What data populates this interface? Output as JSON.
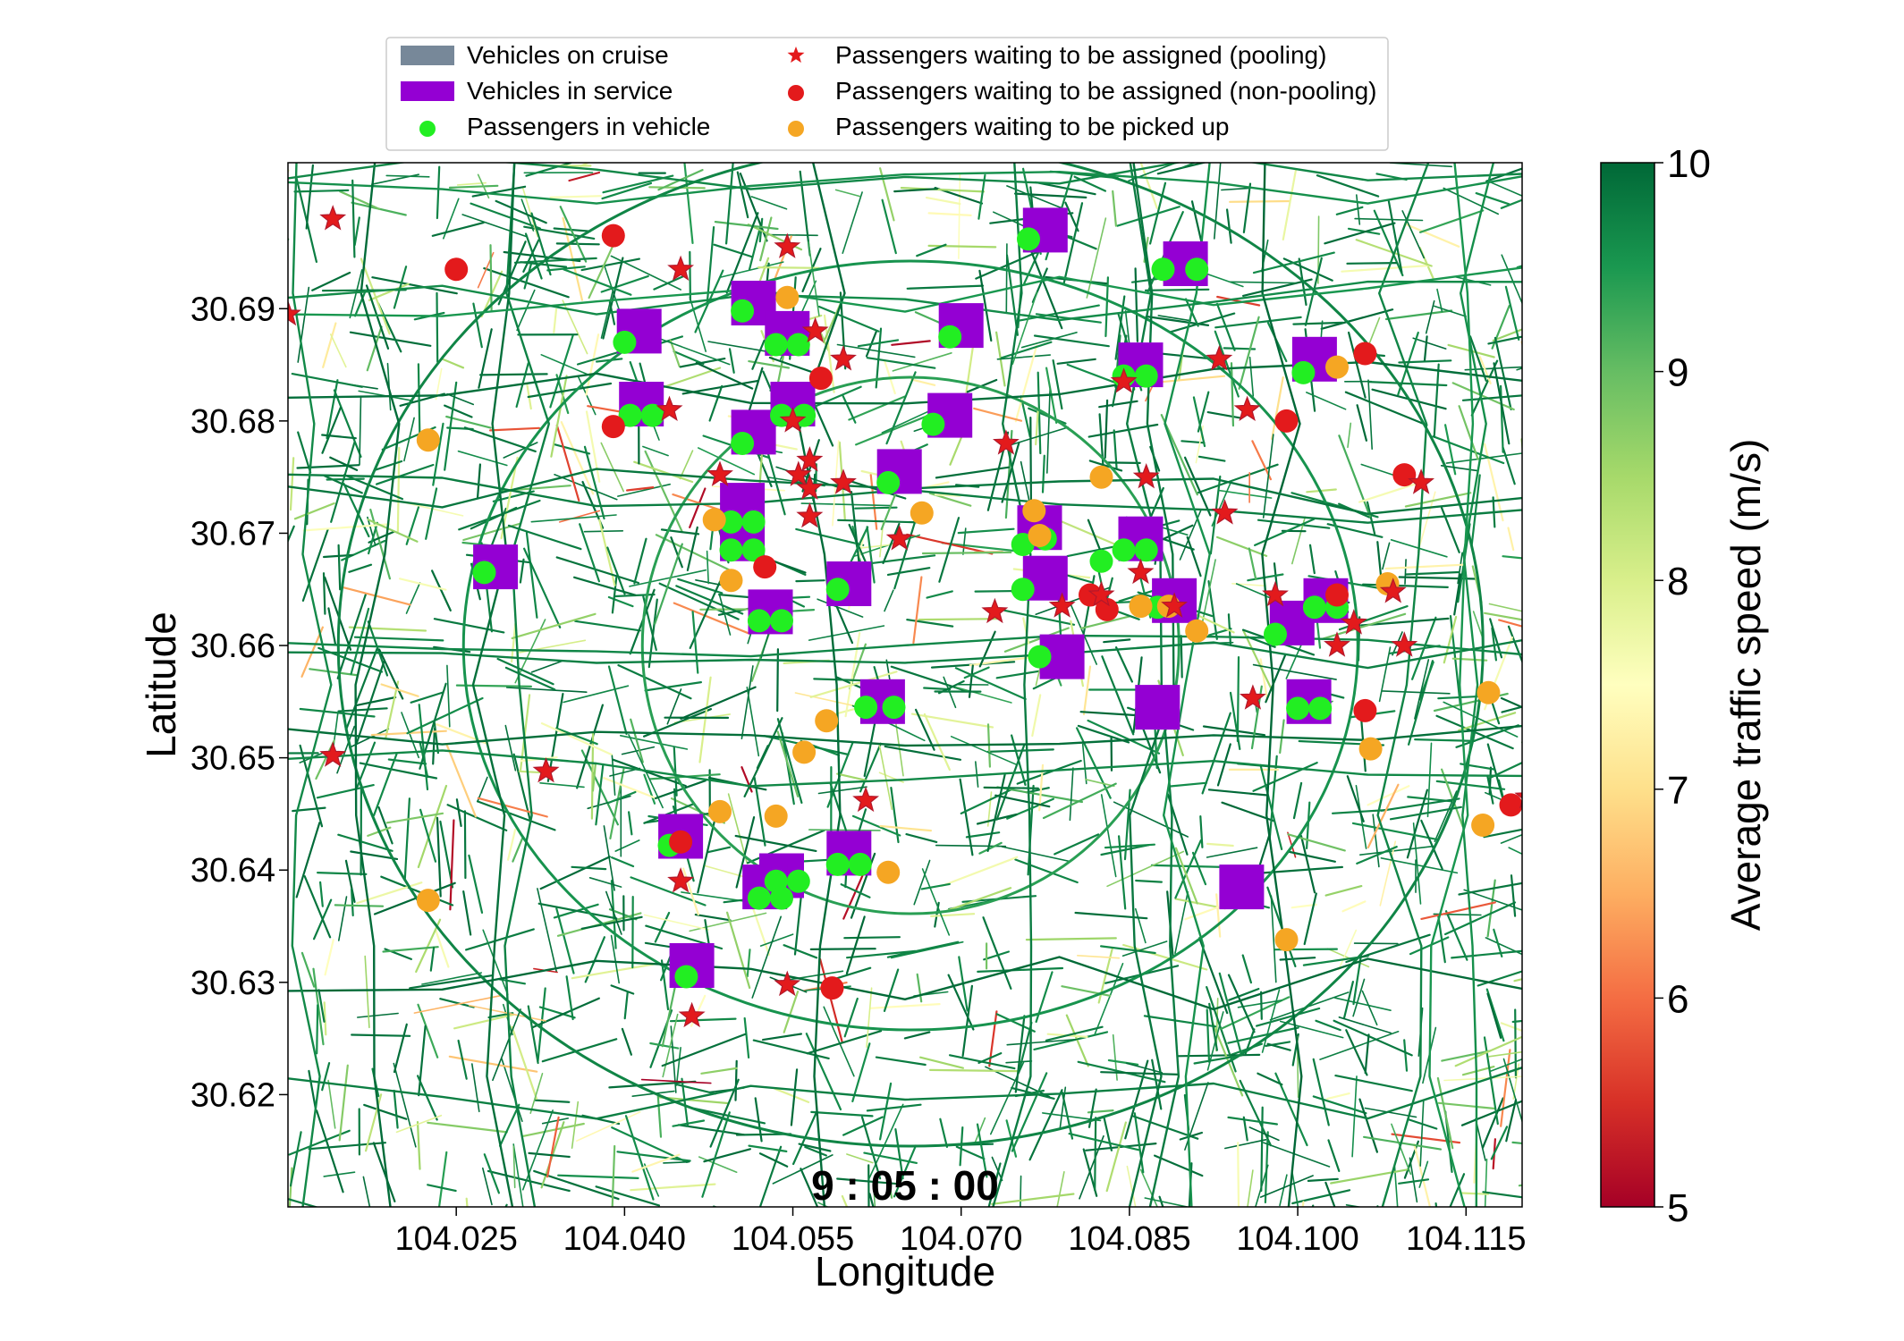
{
  "chart_data": {
    "type": "scatter",
    "xlabel": "Longitude",
    "ylabel": "Latitude",
    "xlim": [
      104.01,
      104.12
    ],
    "ylim": [
      30.61,
      30.703
    ],
    "x_ticks": [
      "104.025",
      "104.040",
      "104.055",
      "104.070",
      "104.085",
      "104.100",
      "104.115"
    ],
    "x_tick_values": [
      104.025,
      104.04,
      104.055,
      104.07,
      104.085,
      104.1,
      104.115
    ],
    "y_ticks": [
      "30.62",
      "30.63",
      "30.64",
      "30.65",
      "30.66",
      "30.67",
      "30.68",
      "30.69"
    ],
    "y_tick_values": [
      30.62,
      30.63,
      30.64,
      30.65,
      30.66,
      30.67,
      30.68,
      30.69
    ],
    "timestamp": "9 : 05 : 00",
    "grid": false,
    "legend_position": "top",
    "legend": [
      {
        "label": "Vehicles on cruise",
        "marker": "rect",
        "color": "#778899"
      },
      {
        "label": "Passengers waiting to be assigned (pooling)",
        "marker": "star",
        "color": "#e31a1c"
      },
      {
        "label": "Vehicles in service",
        "marker": "rect",
        "color": "#9400d3"
      },
      {
        "label": "Passengers waiting to be assigned (non-pooling)",
        "marker": "circle",
        "color": "#e31a1c"
      },
      {
        "label": "Passengers in vehicle",
        "marker": "circle",
        "color": "#22ee22"
      },
      {
        "label": "Passengers waiting to be picked up",
        "marker": "circle",
        "color": "#f5a623"
      }
    ],
    "colorbar": {
      "label": "Average traffic speed (m/s)",
      "min": 5,
      "max": 10,
      "ticks": [
        "5",
        "6",
        "7",
        "8",
        "9",
        "10"
      ],
      "tick_values": [
        5,
        6,
        7,
        8,
        9,
        10
      ],
      "colormap": "RdYlGn",
      "stops": [
        "#a50026",
        "#d73027",
        "#f46d43",
        "#fdae61",
        "#fee08b",
        "#ffffbf",
        "#d9ef8b",
        "#a6d96a",
        "#66bd63",
        "#1a9850",
        "#006837"
      ]
    },
    "vehicles_in_service": [
      [
        104.0775,
        30.697
      ],
      [
        104.09,
        30.694
      ],
      [
        104.0515,
        30.6905
      ],
      [
        104.0413,
        30.688
      ],
      [
        104.0545,
        30.6878
      ],
      [
        104.07,
        30.6885
      ],
      [
        104.086,
        30.685
      ],
      [
        104.1015,
        30.6855
      ],
      [
        104.0415,
        30.6815
      ],
      [
        104.055,
        30.6815
      ],
      [
        104.0515,
        30.679
      ],
      [
        104.069,
        30.6805
      ],
      [
        104.0645,
        30.6755
      ],
      [
        104.0505,
        30.6725
      ],
      [
        104.0505,
        30.6695
      ],
      [
        104.077,
        30.6705
      ],
      [
        104.086,
        30.6695
      ],
      [
        104.0285,
        30.667
      ],
      [
        104.06,
        30.6655
      ],
      [
        104.0775,
        30.666
      ],
      [
        104.053,
        30.663
      ],
      [
        104.089,
        30.664
      ],
      [
        104.1025,
        30.664
      ],
      [
        104.0995,
        30.662
      ],
      [
        104.079,
        30.659
      ],
      [
        104.063,
        30.655
      ],
      [
        104.0875,
        30.6545
      ],
      [
        104.101,
        30.655
      ],
      [
        104.045,
        30.643
      ],
      [
        104.06,
        30.6415
      ],
      [
        104.054,
        30.6395
      ],
      [
        104.0525,
        30.6385
      ],
      [
        104.095,
        30.6385
      ],
      [
        104.046,
        30.6315
      ]
    ],
    "vehicles_on_cruise": [],
    "passengers_in_vehicle": [
      [
        104.076,
        30.6962
      ],
      [
        104.088,
        30.6935
      ],
      [
        104.091,
        30.6935
      ],
      [
        104.0505,
        30.6898
      ],
      [
        104.0535,
        30.6868
      ],
      [
        104.0555,
        30.6868
      ],
      [
        104.04,
        30.687
      ],
      [
        104.069,
        30.6875
      ],
      [
        104.0845,
        30.684
      ],
      [
        104.0865,
        30.684
      ],
      [
        104.1005,
        30.6843
      ],
      [
        104.0405,
        30.6805
      ],
      [
        104.0425,
        30.6805
      ],
      [
        104.054,
        30.6805
      ],
      [
        104.056,
        30.6805
      ],
      [
        104.0505,
        30.678
      ],
      [
        104.0675,
        30.6797
      ],
      [
        104.0635,
        30.6745
      ],
      [
        104.0495,
        30.671
      ],
      [
        104.0515,
        30.671
      ],
      [
        104.0495,
        30.6685
      ],
      [
        104.0515,
        30.6685
      ],
      [
        104.0755,
        30.669
      ],
      [
        104.0775,
        30.6695
      ],
      [
        104.0825,
        30.6675
      ],
      [
        104.0845,
        30.6685
      ],
      [
        104.0865,
        30.6685
      ],
      [
        104.0275,
        30.6665
      ],
      [
        104.059,
        30.665
      ],
      [
        104.0755,
        30.665
      ],
      [
        104.052,
        30.6622
      ],
      [
        104.054,
        30.6622
      ],
      [
        104.0875,
        30.6634
      ],
      [
        104.1015,
        30.6634
      ],
      [
        104.1035,
        30.6634
      ],
      [
        104.098,
        30.661
      ],
      [
        104.077,
        30.659
      ],
      [
        104.0615,
        30.6545
      ],
      [
        104.064,
        30.6545
      ],
      [
        104.1,
        30.6544
      ],
      [
        104.102,
        30.6544
      ],
      [
        104.044,
        30.6422
      ],
      [
        104.059,
        30.6405
      ],
      [
        104.061,
        30.6405
      ],
      [
        104.0535,
        30.639
      ],
      [
        104.0555,
        30.639
      ],
      [
        104.052,
        30.6375
      ],
      [
        104.054,
        30.6375
      ],
      [
        104.0455,
        30.6305
      ]
    ],
    "passengers_waiting_pooling": [
      [
        104.01,
        30.6895
      ],
      [
        104.014,
        30.698
      ],
      [
        104.045,
        30.6935
      ],
      [
        104.0545,
        30.6955
      ],
      [
        104.057,
        30.688
      ],
      [
        104.0595,
        30.6855
      ],
      [
        104.044,
        30.681
      ],
      [
        104.055,
        30.68
      ],
      [
        104.0565,
        30.6765
      ],
      [
        104.0555,
        30.6752
      ],
      [
        104.0565,
        30.674
      ],
      [
        104.0485,
        30.6752
      ],
      [
        104.0595,
        30.6745
      ],
      [
        104.0565,
        30.6715
      ],
      [
        104.0645,
        30.6695
      ],
      [
        104.074,
        30.678
      ],
      [
        104.0845,
        30.6835
      ],
      [
        104.0865,
        30.675
      ],
      [
        104.093,
        30.6855
      ],
      [
        104.0955,
        30.681
      ],
      [
        104.0935,
        30.6718
      ],
      [
        104.086,
        30.6665
      ],
      [
        104.0825,
        30.6645
      ],
      [
        104.073,
        30.663
      ],
      [
        104.079,
        30.6635
      ],
      [
        104.089,
        30.6635
      ],
      [
        104.098,
        30.6645
      ],
      [
        104.105,
        30.662
      ],
      [
        104.1035,
        30.66
      ],
      [
        104.1085,
        30.6648
      ],
      [
        104.1095,
        30.66
      ],
      [
        104.111,
        30.6745
      ],
      [
        104.096,
        30.6553
      ],
      [
        104.014,
        30.6502
      ],
      [
        104.033,
        30.6488
      ],
      [
        104.0615,
        30.6462
      ],
      [
        104.045,
        30.639
      ],
      [
        104.046,
        30.627
      ],
      [
        104.0545,
        30.6298
      ],
      [
        104.1205,
        30.6465
      ]
    ],
    "passengers_waiting_nonpooling": [
      [
        104.025,
        30.6935
      ],
      [
        104.039,
        30.6965
      ],
      [
        104.0575,
        30.6838
      ],
      [
        104.039,
        30.6795
      ],
      [
        104.099,
        30.68
      ],
      [
        104.106,
        30.686
      ],
      [
        104.1095,
        30.6752
      ],
      [
        104.0525,
        30.667
      ],
      [
        104.0815,
        30.6645
      ],
      [
        104.083,
        30.6632
      ],
      [
        104.1035,
        30.6645
      ],
      [
        104.106,
        30.6542
      ],
      [
        104.045,
        30.6425
      ],
      [
        104.0585,
        30.6295
      ],
      [
        104.119,
        30.6458
      ]
    ],
    "passengers_waiting_pickup": [
      [
        104.0545,
        30.691
      ],
      [
        104.1035,
        30.6848
      ],
      [
        104.0225,
        30.6783
      ],
      [
        104.0825,
        30.675
      ],
      [
        104.048,
        30.6712
      ],
      [
        104.0665,
        30.6718
      ],
      [
        104.0765,
        30.672
      ],
      [
        104.077,
        30.6698
      ],
      [
        104.0495,
        30.6658
      ],
      [
        104.086,
        30.6635
      ],
      [
        104.0885,
        30.6635
      ],
      [
        104.091,
        30.6613
      ],
      [
        104.108,
        30.6655
      ],
      [
        104.058,
        30.6533
      ],
      [
        104.056,
        30.6505
      ],
      [
        104.0485,
        30.6452
      ],
      [
        104.0535,
        30.6448
      ],
      [
        104.0635,
        30.6398
      ],
      [
        104.1065,
        30.6508
      ],
      [
        104.117,
        30.6558
      ],
      [
        104.1165,
        30.644
      ],
      [
        104.0225,
        30.6373
      ],
      [
        104.099,
        30.6338
      ]
    ]
  }
}
